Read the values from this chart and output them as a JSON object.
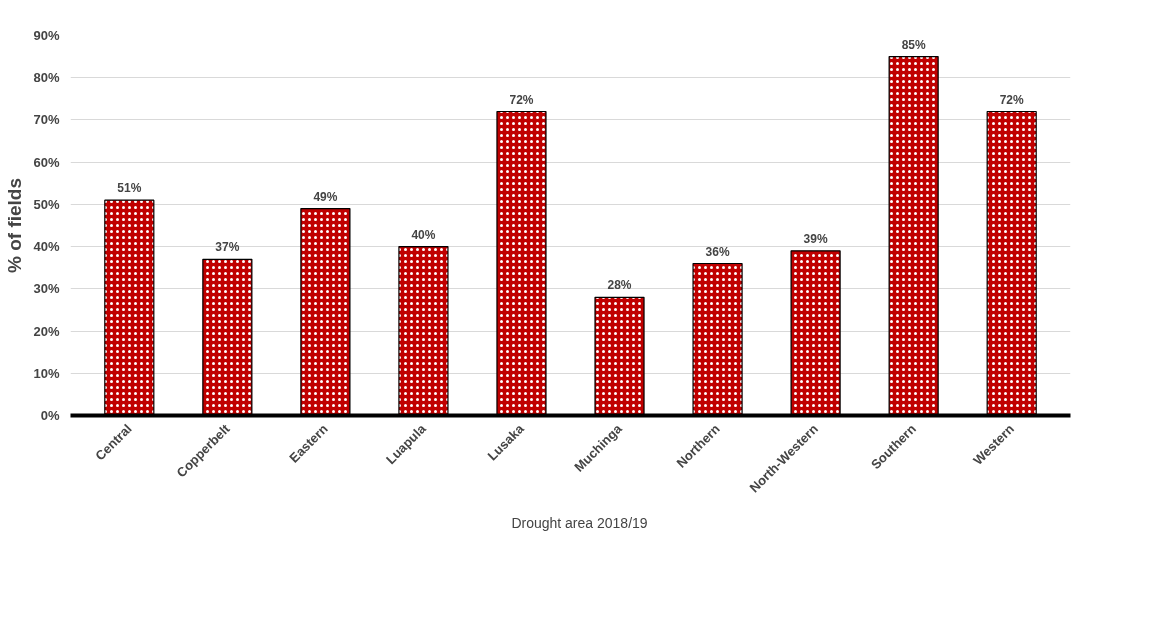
{
  "chart_data": {
    "type": "bar",
    "ylabel": "% of fields",
    "categories": [
      "Central",
      "Copperbelt",
      "Eastern",
      "Luapula",
      "Lusaka",
      "Muchinga",
      "Northern",
      "North-Western",
      "Southern",
      "Western"
    ],
    "series": [
      {
        "name": "Drought area 2018/19",
        "color": "#c00000",
        "values": [
          51,
          37,
          49,
          40,
          72,
          28,
          36,
          39,
          85,
          72
        ],
        "value_labels": [
          "51%",
          "37%",
          "49%",
          "40%",
          "72%",
          "28%",
          "36%",
          "39%",
          "85%",
          "72%"
        ]
      }
    ],
    "ylim": [
      0,
      90
    ],
    "yticks": [
      {
        "value": 0,
        "label": "0%"
      },
      {
        "value": 10,
        "label": "10%"
      },
      {
        "value": 20,
        "label": "20%"
      },
      {
        "value": 30,
        "label": "30%"
      },
      {
        "value": 40,
        "label": "40%"
      },
      {
        "value": 50,
        "label": "50%"
      },
      {
        "value": 60,
        "label": "60%"
      },
      {
        "value": 70,
        "label": "70%"
      },
      {
        "value": 80,
        "label": "80%"
      },
      {
        "value": 90,
        "label": "90%"
      }
    ],
    "grid": "y",
    "legend": "bottom"
  }
}
